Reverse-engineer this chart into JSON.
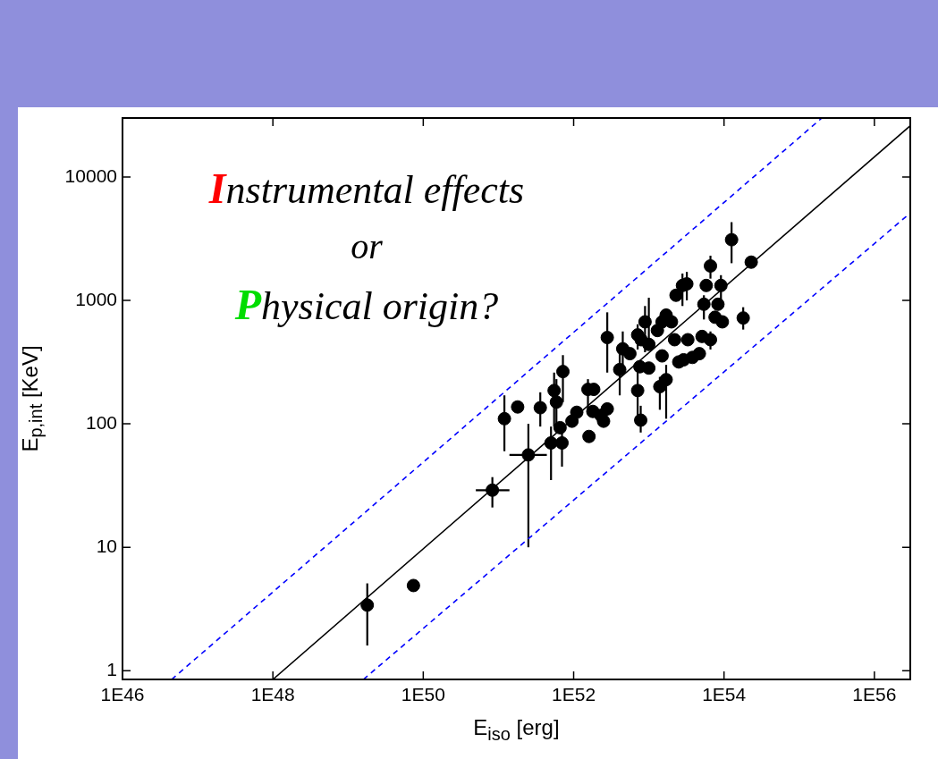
{
  "chart_data": {
    "type": "scatter",
    "xlabel": "E$_{iso}$ [erg]",
    "ylabel": "E$_{p,int}$ [KeV]",
    "annotations": [
      "Instrumental effects",
      "or",
      "Physical origin?"
    ],
    "log": "xy",
    "xlim": [
      1e+46,
      3e+56
    ],
    "ylim": [
      0.85,
      30000
    ],
    "xticks": [
      {
        "value": 1e+46,
        "label": "1E46"
      },
      {
        "value": 1e+48,
        "label": "1E48"
      },
      {
        "value": 1e+50,
        "label": "1E50"
      },
      {
        "value": 1e+52,
        "label": "1E52"
      },
      {
        "value": 1e+54,
        "label": "1E54"
      },
      {
        "value": 1e+56,
        "label": "1E56"
      }
    ],
    "yticks": [
      1,
      10,
      100,
      1000,
      10000
    ],
    "series": [
      {
        "color": "#000000",
        "marker": "circle",
        "x": [
          1.8e+49,
          7.4e+49,
          8.3e+50,
          2.5e+51,
          1.2e+51,
          1.8e+51,
          3.6e+51,
          5.5e+51,
          7.2e+51,
          5.9e+51,
          5e+51,
          7e+51,
          6.6e+51,
          9.5e+51,
          1.1e+52,
          1.55e+52,
          1.85e+52,
          1.6e+52,
          1.8e+52,
          2.3e+52,
          2.8e+52,
          2.5e+52,
          2.8e+52,
          4.1e+52,
          4.5e+52,
          5.6e+52,
          7.1e+52,
          7.1e+52,
          7.6e+52,
          7.9e+52,
          7.8e+52,
          8.9e+52,
          1e+53,
          1e+53,
          1.3e+53,
          1.4e+53,
          1.5e+53,
          1.5e+53,
          1.7e+53,
          2e+53,
          1.7e+53,
          2.3e+53,
          2.8e+53,
          3.2e+53,
          2.2e+53,
          2.5e+53,
          3.3e+53,
          3.8e+53,
          2.9e+53,
          4.7e+53,
          5.1e+53,
          5.4e+53,
          5.8e+53,
          6.6e+53,
          6.6e+53,
          7.6e+53,
          8.3e+53,
          9.1e+53,
          9.5e+53,
          1.26e+54,
          1.8e+54,
          2.3e+54
        ],
        "values": [
          3.4,
          4.9,
          29,
          56,
          110,
          137,
          135,
          186,
          265,
          150,
          70,
          70,
          93,
          105,
          124,
          190,
          190,
          79,
          126,
          117,
          132,
          105,
          500,
          275,
          405,
          370,
          525,
          186,
          290,
          480,
          107,
          670,
          283,
          440,
          570,
          200,
          355,
          670,
          760,
          670,
          228,
          1100,
          1320,
          1360,
          480,
          317,
          480,
          345,
          330,
          370,
          510,
          930,
          1320,
          1900,
          480,
          730,
          930,
          1320,
          670,
          3100,
          720,
          2040
        ],
        "errors": [
          [
            1.6,
            5.1
          ],
          null,
          [
            21,
            37
          ],
          [
            10,
            100
          ],
          [
            60,
            170
          ],
          null,
          [
            95,
            180
          ],
          [
            95,
            260
          ],
          [
            150,
            360
          ],
          [
            100,
            230
          ],
          [
            35,
            95
          ],
          [
            45,
            100
          ],
          null,
          null,
          null,
          [
            120,
            230
          ],
          null,
          null,
          null,
          null,
          null,
          null,
          [
            260,
            800
          ],
          [
            170,
            420
          ],
          [
            300,
            560
          ],
          null,
          [
            400,
            640
          ],
          [
            110,
            260
          ],
          null,
          null,
          [
            85,
            140
          ],
          [
            380,
            900
          ],
          null,
          [
            440,
            1050
          ],
          null,
          [
            130,
            240
          ],
          null,
          null,
          null,
          null,
          [
            110,
            300
          ],
          null,
          [
            900,
            1650
          ],
          [
            1000,
            1700
          ],
          null,
          null,
          null,
          null,
          null,
          null,
          null,
          [
            700,
            1100
          ],
          null,
          [
            1500,
            2300
          ],
          [
            400,
            560
          ],
          null,
          null,
          [
            1000,
            1600
          ],
          null,
          [
            2000,
            4300
          ],
          [
            580,
            880
          ],
          null
        ],
        "xerrors": [
          null,
          null,
          [
            5e+50,
            1.4e+51
          ],
          [
            1.4e+51,
            4.4e+51
          ],
          null,
          null,
          null,
          null,
          null,
          null,
          null,
          null,
          null,
          null,
          null,
          null,
          null,
          null,
          null,
          null,
          null,
          null,
          null,
          null,
          null,
          null,
          null,
          null,
          null,
          null,
          null,
          null,
          null,
          null,
          null,
          null,
          null,
          null,
          null,
          null,
          null,
          null,
          null,
          null,
          null,
          null,
          null,
          null,
          null,
          null,
          null,
          null,
          null,
          null,
          null,
          null,
          null,
          null,
          null,
          null,
          null,
          null
        ]
      },
      {
        "type": "line",
        "color": "#000000",
        "line_style": "solid",
        "x": [
          1e+48,
          3e+56
        ],
        "values": [
          0.85,
          26000
        ]
      },
      {
        "type": "line",
        "color": "#0000ff",
        "line_style": "dashed",
        "x": [
          4.5e+46,
          2e+55
        ],
        "values": [
          0.85,
          30000
        ]
      },
      {
        "type": "line",
        "color": "#0000ff",
        "line_style": "dashed",
        "x": [
          1.6e+49,
          3e+56
        ],
        "values": [
          0.85,
          5100
        ]
      }
    ]
  }
}
